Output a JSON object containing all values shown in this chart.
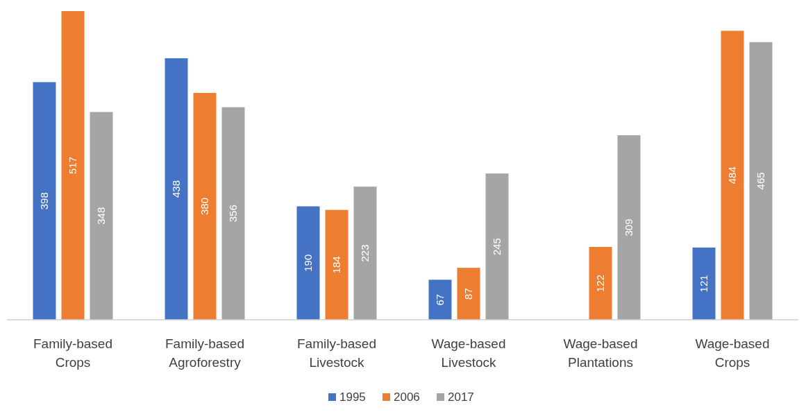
{
  "chart_data": {
    "type": "bar",
    "categories": [
      "Family-based Crops",
      "Family-based Agroforestry",
      "Family-based Livestock",
      "Wage-based Livestock",
      "Wage-based Plantations",
      "Wage-based Crops"
    ],
    "series": [
      {
        "name": "1995",
        "color": "#4472c4",
        "values": [
          398,
          438,
          190,
          67,
          null,
          121
        ]
      },
      {
        "name": "2006",
        "color": "#ed7d31",
        "values": [
          517,
          380,
          184,
          87,
          122,
          484
        ]
      },
      {
        "name": "2017",
        "color": "#a5a5a5",
        "values": [
          348,
          356,
          223,
          245,
          309,
          465
        ]
      }
    ],
    "data_labels": true,
    "legend": "bottom"
  }
}
